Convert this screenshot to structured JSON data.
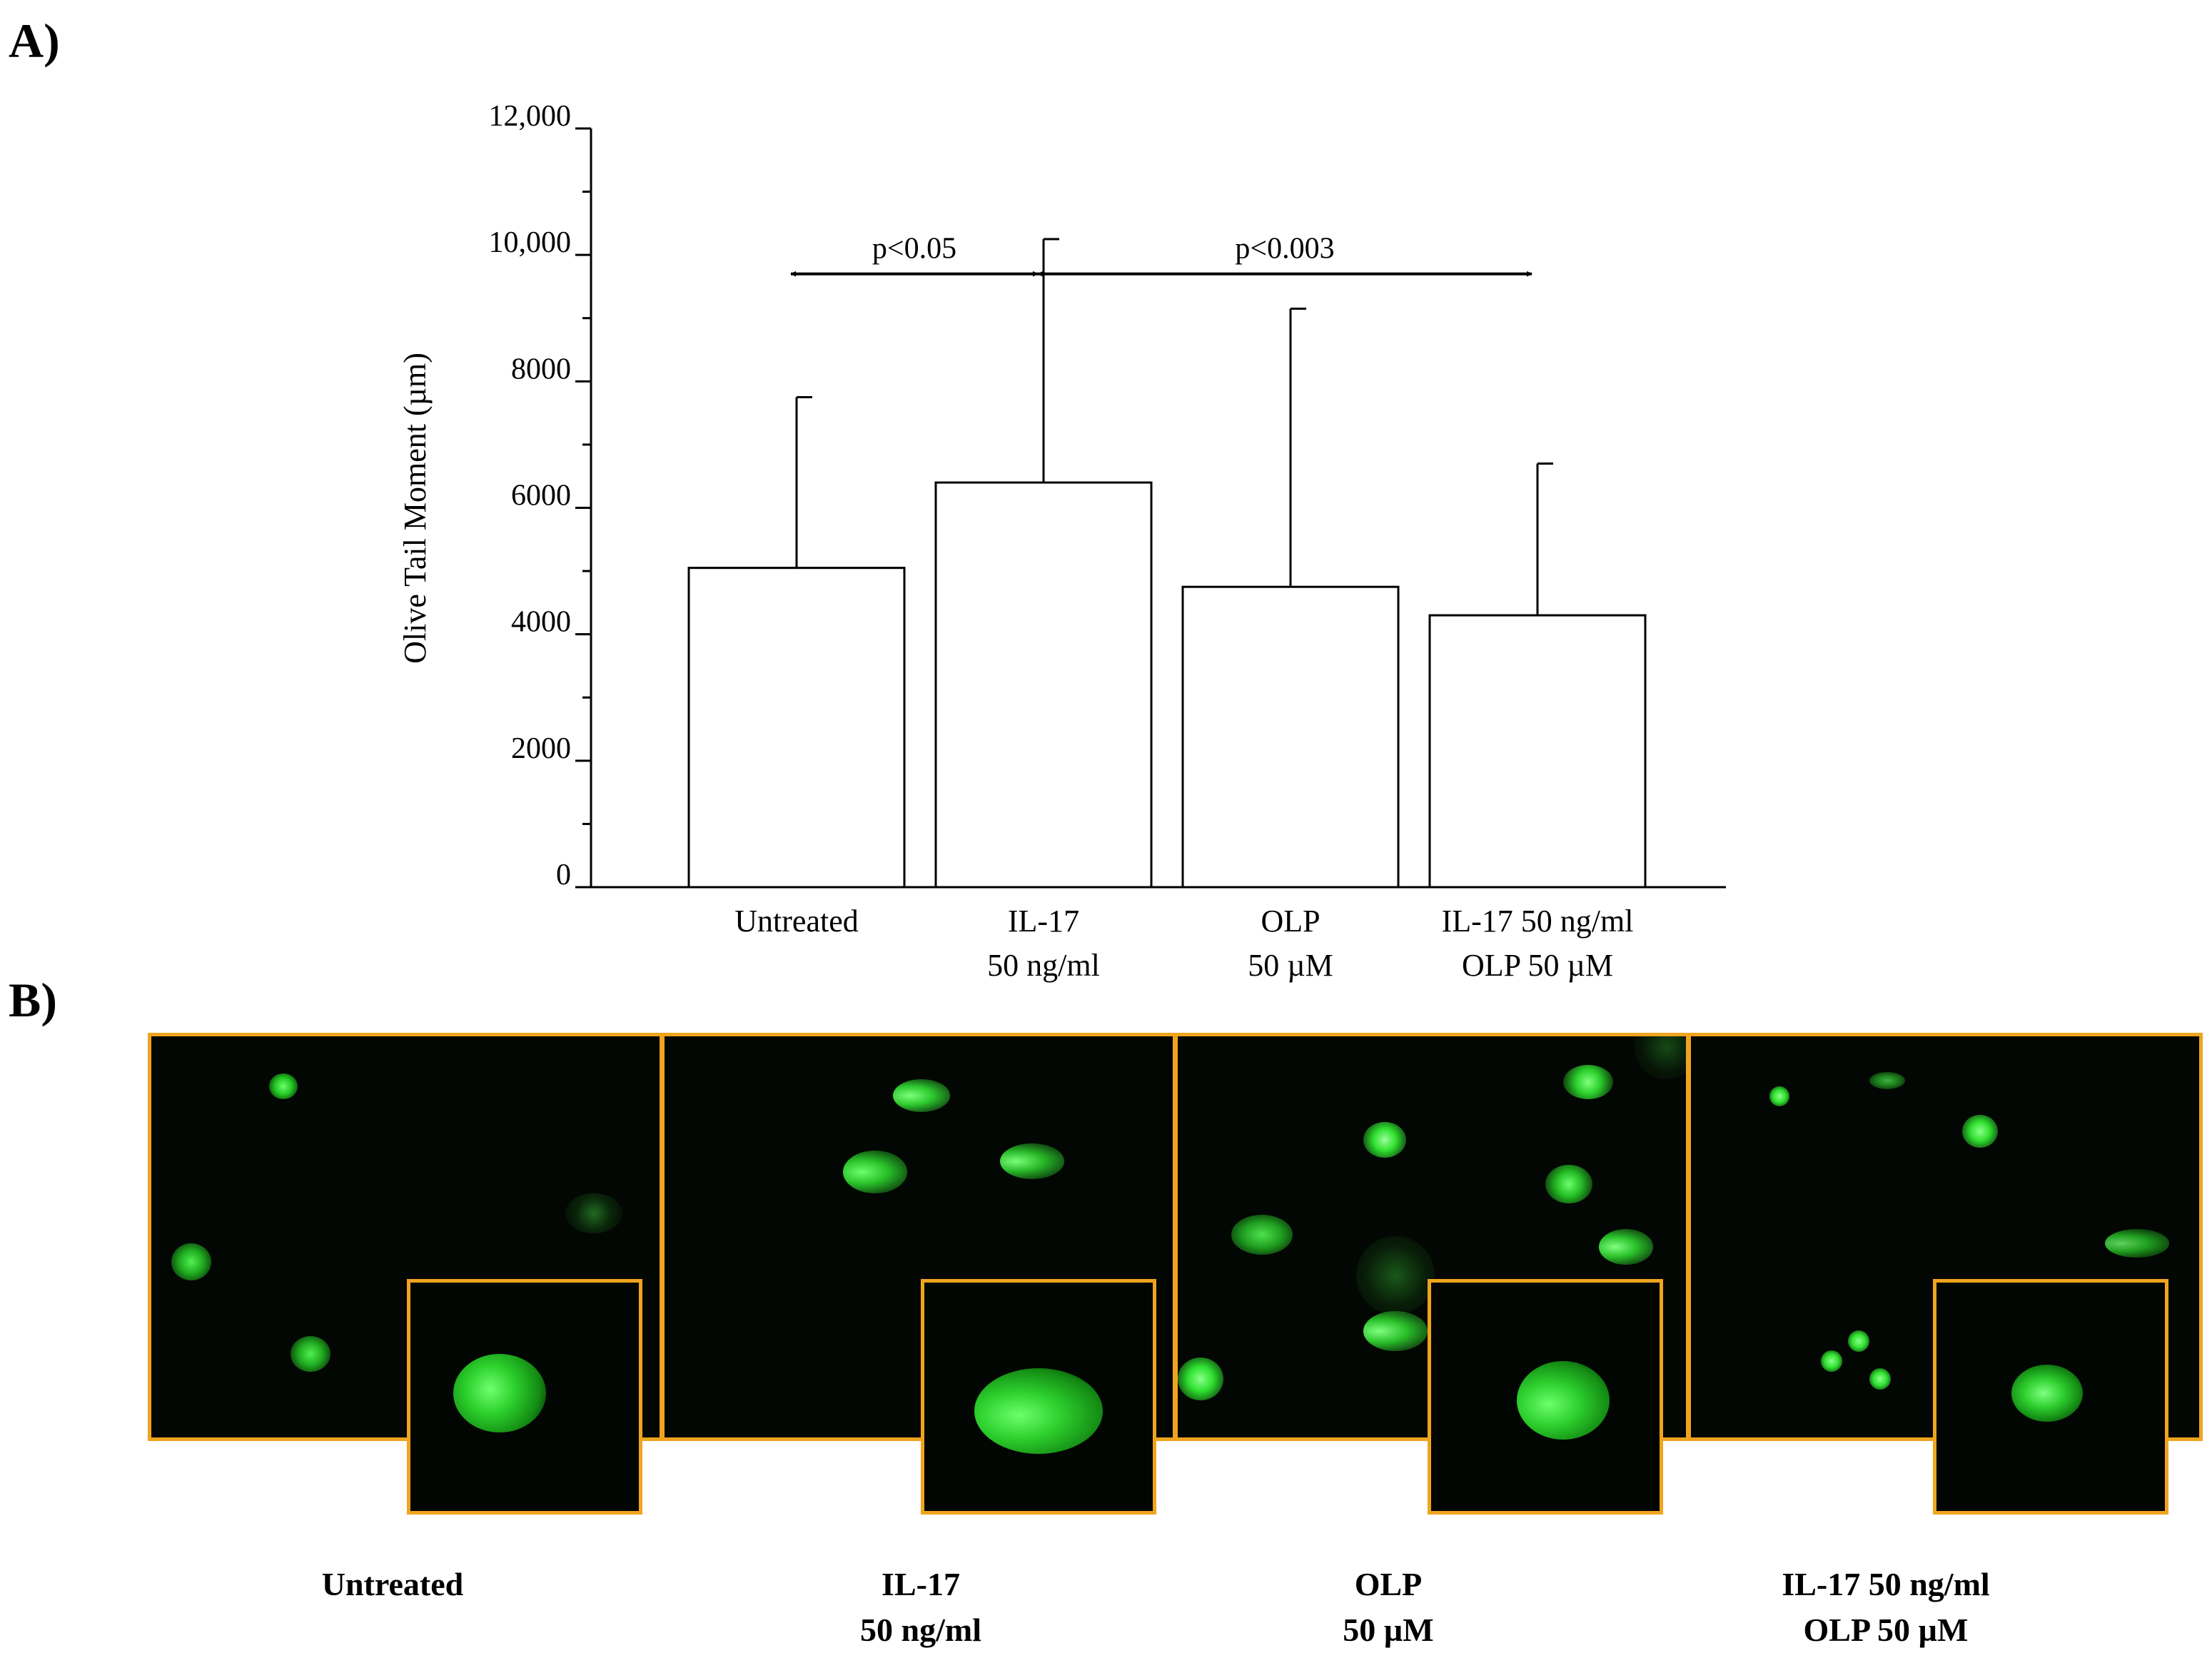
{
  "panels": {
    "a_label": "A)",
    "b_label": "B)"
  },
  "chart_data": {
    "type": "bar",
    "ylabel": "Olive Tail Moment (µm)",
    "ylim": [
      0,
      12000
    ],
    "yticks": [
      {
        "value": 0,
        "label": "0"
      },
      {
        "value": 2000,
        "label": "2000"
      },
      {
        "value": 4000,
        "label": "4000"
      },
      {
        "value": 6000,
        "label": "6000"
      },
      {
        "value": 8000,
        "label": "8000"
      },
      {
        "value": 10000,
        "label": "10,000"
      },
      {
        "value": 12000,
        "label": "12,000"
      }
    ],
    "categories": [
      [
        "Untreated"
      ],
      [
        "IL-17",
        "50 ng/ml"
      ],
      [
        "OLP",
        "50 µM"
      ],
      [
        "IL-17 50 ng/ml",
        "OLP 50 µM"
      ]
    ],
    "values": [
      5050,
      6400,
      4750,
      4300
    ],
    "error_upper": [
      7750,
      10250,
      9150,
      6700
    ],
    "comparisons": [
      {
        "from": 0,
        "to": 1,
        "label": "p<0.05"
      },
      {
        "from": 1,
        "to": 3,
        "label": "p<0.003"
      }
    ]
  },
  "micrographs": {
    "border_color": "#f0a41e",
    "captions": [
      [
        "Untreated"
      ],
      [
        "IL-17",
        "50 ng/ml"
      ],
      [
        "OLP",
        "50 µM"
      ],
      [
        "IL-17 50 ng/ml",
        "OLP 50 µM"
      ]
    ]
  }
}
